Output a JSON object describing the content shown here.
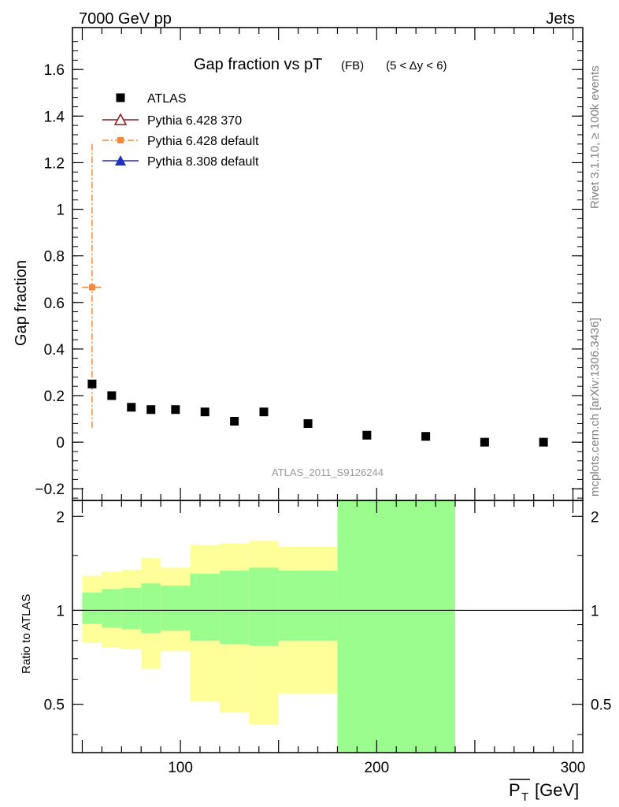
{
  "header": {
    "left": "7000 GeV pp",
    "right": "Jets"
  },
  "side_labels": {
    "rivet": "Rivet 3.1.10, ≥ 100k events",
    "mcplots": "mcplots.cern.ch [arXiv:1306.3436]"
  },
  "chart_data": [
    {
      "type": "scatter",
      "title_main": "Gap fraction vs pT",
      "title_sub": "(FB)",
      "title_range": "(5 < Δy < 6)",
      "ylabel": "Gap fraction",
      "watermark": "ATLAS_2011_S9126244",
      "xlim": [
        45,
        305
      ],
      "ylim": [
        -0.25,
        1.78
      ],
      "yticks": [
        -0.2,
        0,
        0.2,
        0.4,
        0.6,
        0.8,
        1,
        1.2,
        1.4,
        1.6
      ],
      "ytick_labels": [
        "−0.2",
        "0",
        "0.2",
        "0.4",
        "0.6",
        "0.8",
        "1",
        "1.2",
        "1.4",
        "1.6"
      ],
      "legend": [
        {
          "label": "ATLAS",
          "color": "#000000",
          "marker": "square",
          "line": "none"
        },
        {
          "label": "Pythia 6.428 370",
          "color": "#8b1a1a",
          "marker": "open-triangle",
          "line": "solid"
        },
        {
          "label": "Pythia 6.428 default",
          "color": "#f5883a",
          "marker": "small-square",
          "line": "dashdot"
        },
        {
          "label": "Pythia 8.308 default",
          "color": "#1f2fbf",
          "marker": "triangle",
          "line": "solid"
        }
      ],
      "series": [
        {
          "name": "ATLAS",
          "color": "#000000",
          "x": [
            55,
            65,
            75,
            85,
            97.5,
            112.5,
            127.5,
            142.5,
            165,
            195,
            225,
            255,
            285
          ],
          "y": [
            0.25,
            0.2,
            0.15,
            0.14,
            0.14,
            0.13,
            0.09,
            0.13,
            0.08,
            0.03,
            0.025,
            0.0,
            0.0
          ]
        },
        {
          "name": "Pythia 6.428 default",
          "color": "#f5883a",
          "x": [
            55
          ],
          "y": [
            0.665
          ],
          "yerr_low": [
            0.06
          ],
          "yerr_high": [
            1.28
          ],
          "xerr_low": [
            50
          ],
          "xerr_high": [
            60
          ]
        }
      ]
    },
    {
      "type": "area",
      "ylabel": "Ratio to ATLAS",
      "xlabel": "P̅T [GeV]",
      "xlabel_main": "P",
      "xlabel_sub": "T",
      "xlabel_unit": "[GeV]",
      "xlim": [
        45,
        305
      ],
      "ylim": [
        0.35,
        2.25
      ],
      "xticks": [
        100,
        200,
        300
      ],
      "xtick_labels": [
        "100",
        "200",
        "300"
      ],
      "yticks": [
        0.5,
        1,
        2
      ],
      "ytick_labels": [
        "0.5",
        "1",
        "2"
      ],
      "reference_line": 1,
      "bins": [
        {
          "x0": 50,
          "x1": 60,
          "inner": [
            0.905,
            1.14
          ],
          "outer": [
            0.79,
            1.29
          ]
        },
        {
          "x0": 60,
          "x1": 70,
          "inner": [
            0.88,
            1.17
          ],
          "outer": [
            0.76,
            1.33
          ]
        },
        {
          "x0": 70,
          "x1": 80,
          "inner": [
            0.87,
            1.18
          ],
          "outer": [
            0.75,
            1.35
          ]
        },
        {
          "x0": 80,
          "x1": 90,
          "inner": [
            0.845,
            1.22
          ],
          "outer": [
            0.65,
            1.47
          ]
        },
        {
          "x0": 90,
          "x1": 105,
          "inner": [
            0.86,
            1.2
          ],
          "outer": [
            0.74,
            1.37
          ]
        },
        {
          "x0": 105,
          "x1": 120,
          "inner": [
            0.8,
            1.31
          ],
          "outer": [
            0.51,
            1.62
          ]
        },
        {
          "x0": 120,
          "x1": 135,
          "inner": [
            0.78,
            1.34
          ],
          "outer": [
            0.47,
            1.64
          ]
        },
        {
          "x0": 135,
          "x1": 150,
          "inner": [
            0.77,
            1.37
          ],
          "outer": [
            0.43,
            1.67
          ]
        },
        {
          "x0": 150,
          "x1": 180,
          "inner": [
            0.8,
            1.34
          ],
          "outer": [
            0.54,
            1.6
          ]
        },
        {
          "x0": 180,
          "x1": 240,
          "inner": [
            0.3,
            2.4
          ],
          "outer": [
            0.3,
            2.4
          ]
        }
      ],
      "band_colors": {
        "inner": "#9cfd8f",
        "outer": "#ffff99"
      }
    }
  ]
}
